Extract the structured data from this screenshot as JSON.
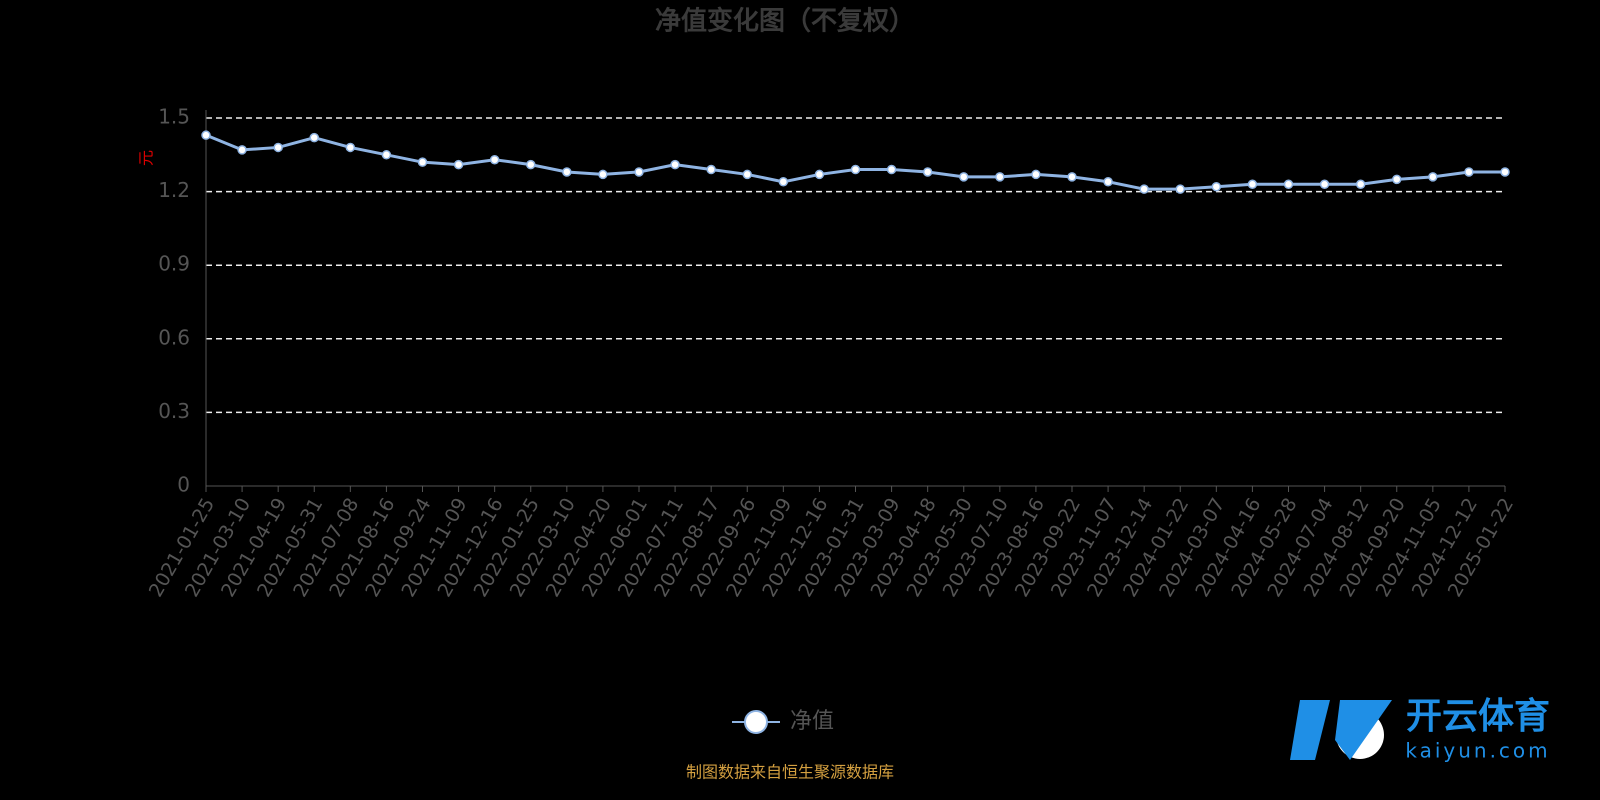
{
  "chart_data": {
    "type": "line",
    "title": "净值变化图（不复权）",
    "y_label": "元",
    "x": [
      "2021-01-25",
      "2021-03-10",
      "2021-04-19",
      "2021-05-31",
      "2021-07-08",
      "2021-08-16",
      "2021-09-24",
      "2021-11-09",
      "2021-12-16",
      "2022-01-25",
      "2022-03-10",
      "2022-04-20",
      "2022-06-01",
      "2022-07-11",
      "2022-08-17",
      "2022-09-26",
      "2022-11-09",
      "2022-12-16",
      "2023-01-31",
      "2023-03-09",
      "2023-04-18",
      "2023-05-30",
      "2023-07-10",
      "2023-08-16",
      "2023-09-22",
      "2023-11-07",
      "2023-12-14",
      "2024-01-22",
      "2024-03-07",
      "2024-04-16",
      "2024-05-28",
      "2024-07-04",
      "2024-08-12",
      "2024-09-20",
      "2024-11-05",
      "2024-12-12",
      "2025-01-22"
    ],
    "series": [
      {
        "name": "净值",
        "color": "#8fb4e3",
        "values": [
          1.43,
          1.37,
          1.38,
          1.42,
          1.38,
          1.35,
          1.32,
          1.31,
          1.33,
          1.31,
          1.28,
          1.27,
          1.28,
          1.31,
          1.29,
          1.27,
          1.24,
          1.27,
          1.29,
          1.29,
          1.28,
          1.26,
          1.26,
          1.27,
          1.26,
          1.24,
          1.21,
          1.21,
          1.22,
          1.23,
          1.23,
          1.23,
          1.23,
          1.25,
          1.26,
          1.28,
          1.28
        ]
      }
    ],
    "ylim": [
      0,
      1.5
    ],
    "yticks": [
      0,
      0.3,
      0.6,
      0.9,
      1.2,
      1.5
    ],
    "grid": true
  },
  "source": "制图数据来自恒生聚源数据库",
  "watermark": {
    "title": "开云体育",
    "subtitle": "kaiyun.com"
  }
}
